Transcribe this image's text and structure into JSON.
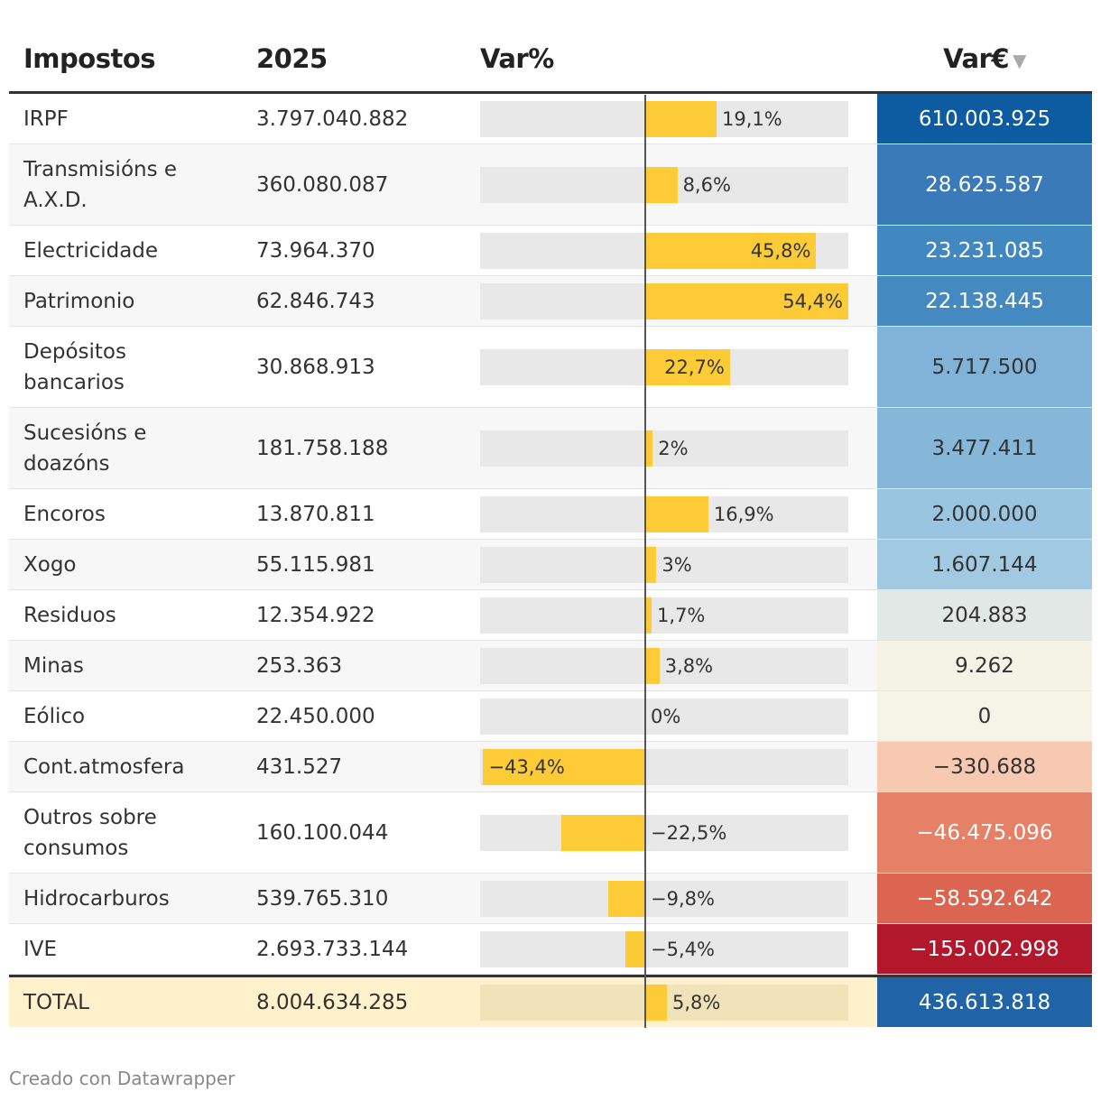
{
  "table": {
    "headers": {
      "name": "Impostos",
      "year": "2025",
      "var_pct": "Var%",
      "var_eur": "Var€",
      "sort_icon": "sort-descending-icon"
    },
    "rows": [
      {
        "name": "IRPF",
        "value": "3.797.040.882",
        "var_pct_label": "19,1%",
        "var_pct": 19.1,
        "var_eur": "610.003.925",
        "eur_bg": "#0d5ba1",
        "eur_text": "#ffffff"
      },
      {
        "name": "Transmisións e A.X.D.",
        "value": "360.080.087",
        "var_pct_label": "8,6%",
        "var_pct": 8.6,
        "var_eur": "28.625.587",
        "eur_bg": "#3a7ab8",
        "eur_text": "#ffffff"
      },
      {
        "name": "Electricidade",
        "value": "73.964.370",
        "var_pct_label": "45,8%",
        "var_pct": 45.8,
        "var_eur": "23.231.085",
        "eur_bg": "#4288c0",
        "eur_text": "#ffffff"
      },
      {
        "name": "Patrimonio",
        "value": "62.846.743",
        "var_pct_label": "54,4%",
        "var_pct": 54.4,
        "var_eur": "22.138.445",
        "eur_bg": "#4589c1",
        "eur_text": "#ffffff"
      },
      {
        "name": "Depósitos bancarios",
        "value": "30.868.913",
        "var_pct_label": "22,7%",
        "var_pct": 22.7,
        "var_eur": "5.717.500",
        "eur_bg": "#81b2d7",
        "eur_text": "#333333"
      },
      {
        "name": "Sucesións e doazóns",
        "value": "181.758.188",
        "var_pct_label": "2%",
        "var_pct": 2,
        "var_eur": "3.477.411",
        "eur_bg": "#86b7d9",
        "eur_text": "#333333"
      },
      {
        "name": "Encoros",
        "value": "13.870.811",
        "var_pct_label": "16,9%",
        "var_pct": 16.9,
        "var_eur": "2.000.000",
        "eur_bg": "#99c5e0",
        "eur_text": "#333333"
      },
      {
        "name": "Xogo",
        "value": "55.115.981",
        "var_pct_label": "3%",
        "var_pct": 3,
        "var_eur": "1.607.144",
        "eur_bg": "#a1c9e2",
        "eur_text": "#333333"
      },
      {
        "name": "Residuos",
        "value": "12.354.922",
        "var_pct_label": "1,7%",
        "var_pct": 1.7,
        "var_eur": "204.883",
        "eur_bg": "#e2e8e5",
        "eur_text": "#333333"
      },
      {
        "name": "Minas",
        "value": "253.363",
        "var_pct_label": "3,8%",
        "var_pct": 3.8,
        "var_eur": "9.262",
        "eur_bg": "#f5f3e6",
        "eur_text": "#333333"
      },
      {
        "name": "Eólico",
        "value": "22.450.000",
        "var_pct_label": "0%",
        "var_pct": 0,
        "var_eur": "0",
        "eur_bg": "#f6f4e7",
        "eur_text": "#333333"
      },
      {
        "name": "Cont.atmosfera",
        "value": "431.527",
        "var_pct_label": "−43,4%",
        "var_pct": -43.4,
        "var_eur": "−330.688",
        "eur_bg": "#f7c9b0",
        "eur_text": "#333333"
      },
      {
        "name": "Outros sobre consumos",
        "value": "160.100.044",
        "var_pct_label": "−22,5%",
        "var_pct": -22.5,
        "var_eur": "−46.475.096",
        "eur_bg": "#e58167",
        "eur_text": "#ffffff"
      },
      {
        "name": "Hidrocarburos",
        "value": "539.765.310",
        "var_pct_label": "−9,8%",
        "var_pct": -9.8,
        "var_eur": "−58.592.642",
        "eur_bg": "#db6550",
        "eur_text": "#ffffff"
      },
      {
        "name": "IVE",
        "value": "2.693.733.144",
        "var_pct_label": "−5,4%",
        "var_pct": -5.4,
        "var_eur": "−155.002.998",
        "eur_bg": "#b3172c",
        "eur_text": "#ffffff"
      }
    ],
    "total": {
      "name": "TOTAL",
      "value": "8.004.634.285",
      "var_pct_label": "5,8%",
      "var_pct": 5.8,
      "var_eur": "436.613.818",
      "eur_bg": "#2063a6",
      "eur_text": "#ffffff"
    }
  },
  "footer": {
    "credit": "Creado con Datawrapper"
  },
  "colors": {
    "bar": "#fdcb35",
    "bar_bg": "#e8e8e8",
    "total_bg": "#fef1cc",
    "axis": "#555555"
  }
}
